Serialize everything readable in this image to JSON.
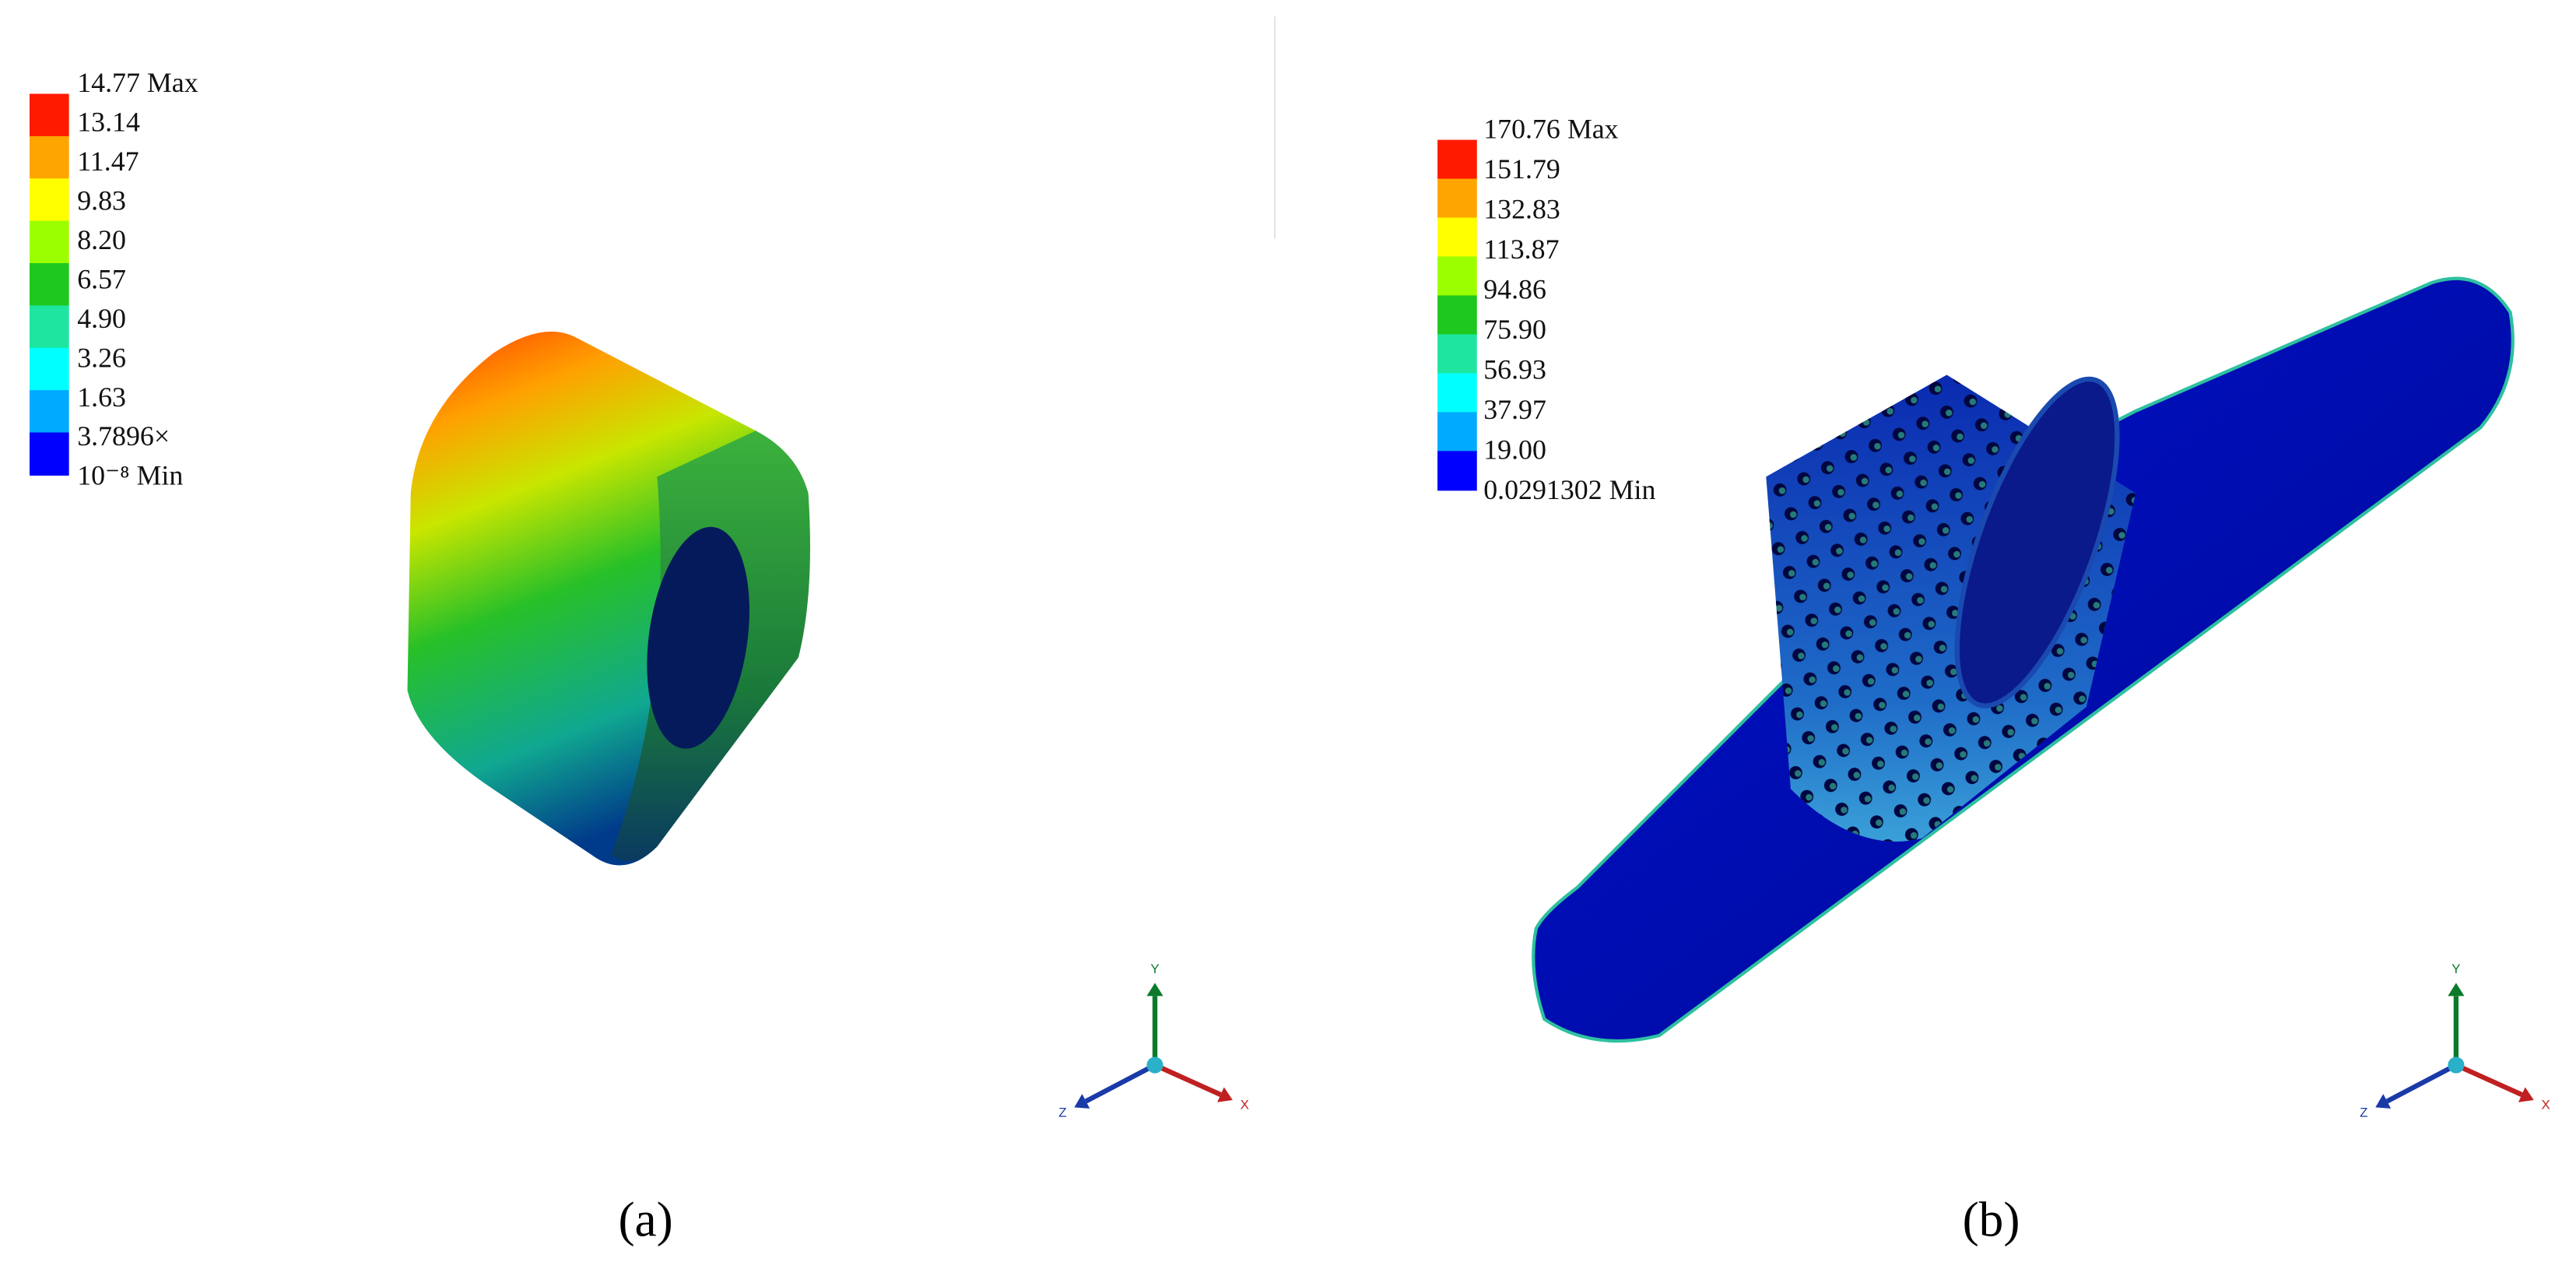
{
  "panels": [
    {
      "legend": {
        "labels": [
          "14.77 Max",
          "13.14",
          "11.47",
          "9.83",
          "8.20",
          "6.57",
          "4.90",
          "3.26",
          "1.63",
          "3.7896×",
          "10⁻⁸ Min"
        ],
        "swatch_colors": [
          "#ff1a00",
          "#ffa500",
          "#ffff00",
          "#9cff00",
          "#1ec81e",
          "#1ee6a0",
          "#00ffff",
          "#00aaff",
          "#0000ff"
        ]
      },
      "axis_labels": [
        "Y",
        "Z",
        "X"
      ],
      "caption": "(a)"
    },
    {
      "legend": {
        "labels": [
          "170.76 Max",
          "151.79",
          "132.83",
          "113.87",
          "94.86",
          "75.90",
          "56.93",
          "37.97",
          "19.00",
          "0.0291302 Min"
        ],
        "swatch_colors": [
          "#ff1a00",
          "#ffa500",
          "#ffff00",
          "#9cff00",
          "#1ec81e",
          "#1ee6a0",
          "#00ffff",
          "#00aaff",
          "#0000ff"
        ]
      },
      "axis_labels": [
        "Y",
        "Z",
        "X"
      ],
      "caption": "(b)"
    }
  ]
}
